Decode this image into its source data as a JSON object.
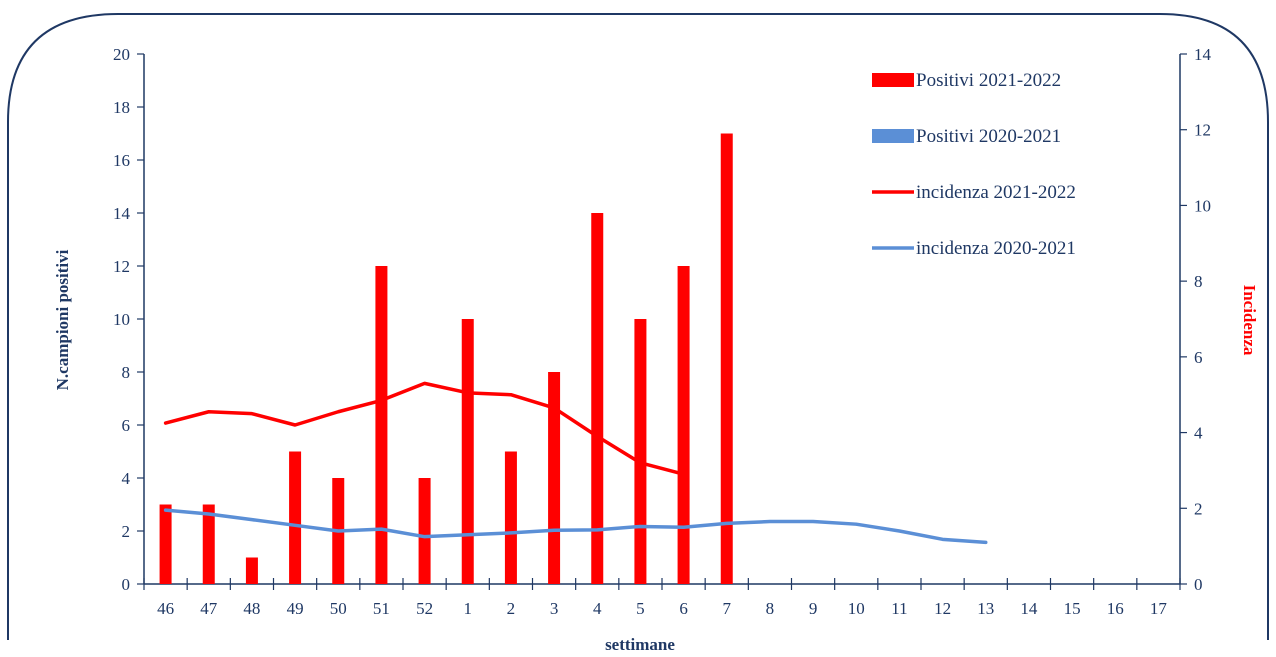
{
  "chart_data": {
    "type": "bar",
    "categories": [
      "46",
      "47",
      "48",
      "49",
      "50",
      "51",
      "52",
      "1",
      "2",
      "3",
      "4",
      "5",
      "6",
      "7",
      "8",
      "9",
      "10",
      "11",
      "12",
      "13",
      "14",
      "15",
      "16",
      "17"
    ],
    "series": [
      {
        "name": "Positivi 2021-2022",
        "type": "bar",
        "axis": "left",
        "color": "#ff0000",
        "values": [
          3,
          3,
          1,
          5,
          4,
          12,
          4,
          10,
          5,
          8,
          14,
          10,
          12,
          17,
          null,
          null,
          null,
          null,
          null,
          null,
          null,
          null,
          null,
          null
        ]
      },
      {
        "name": "Positivi 2020-2021",
        "type": "bar",
        "axis": "left",
        "color": "#5b8fd6",
        "values": [
          null,
          null,
          null,
          null,
          null,
          null,
          null,
          null,
          null,
          null,
          null,
          null,
          null,
          null,
          null,
          null,
          null,
          null,
          null,
          null,
          null,
          null,
          null,
          null
        ]
      },
      {
        "name": "incidenza 2021-2022",
        "type": "line",
        "axis": "right",
        "color": "#ff0000",
        "values": [
          4.25,
          4.55,
          4.5,
          4.2,
          4.55,
          4.85,
          5.3,
          5.05,
          5.0,
          4.65,
          3.9,
          3.2,
          2.9,
          null,
          null,
          null,
          null,
          null,
          null,
          null,
          null,
          null,
          null,
          null
        ]
      },
      {
        "name": "incidenza 2020-2021",
        "type": "line",
        "axis": "right",
        "color": "#5b8fd6",
        "values": [
          1.95,
          1.85,
          1.7,
          1.55,
          1.4,
          1.45,
          1.25,
          1.3,
          1.35,
          1.42,
          1.43,
          1.52,
          1.5,
          1.6,
          1.65,
          1.65,
          1.58,
          1.4,
          1.18,
          1.1,
          null,
          null,
          null,
          null
        ]
      }
    ],
    "xlabel": "settimane",
    "ylabel": "N.campioni positivi",
    "y2label": "Incidenza",
    "ylim": [
      0,
      20
    ],
    "y2lim": [
      0,
      14
    ],
    "yticks": [
      0,
      2,
      4,
      6,
      8,
      10,
      12,
      14,
      16,
      18,
      20
    ],
    "y2ticks": [
      0,
      2,
      4,
      6,
      8,
      10,
      12,
      14
    ],
    "grid": false,
    "legend_position": "top-right"
  },
  "colors": {
    "axis": "#1f3864",
    "frame": "#1f3864",
    "y2label": "#ff0000"
  }
}
